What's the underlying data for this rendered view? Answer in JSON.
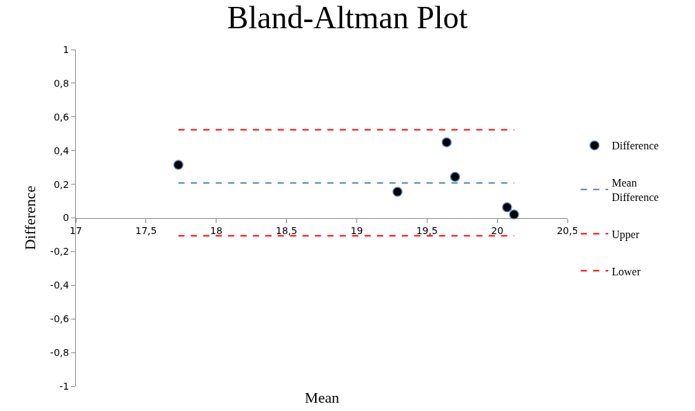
{
  "chart_data": {
    "type": "scatter",
    "title": "Bland-Altman Plot",
    "xlabel": "Mean",
    "ylabel": "Difference",
    "xlim": [
      17,
      20.5
    ],
    "xticks": [
      {
        "value": 17,
        "label": "17"
      },
      {
        "value": 17.5,
        "label": "17,5"
      },
      {
        "value": 18,
        "label": "18"
      },
      {
        "value": 18.5,
        "label": "18,5"
      },
      {
        "value": 19,
        "label": "19"
      },
      {
        "value": 19.5,
        "label": "19,5"
      },
      {
        "value": 20,
        "label": "20"
      },
      {
        "value": 20.5,
        "label": "20,5"
      }
    ],
    "ylim": [
      -1,
      1
    ],
    "yticks": [
      {
        "value": -1,
        "label": "-1"
      },
      {
        "value": -0.8,
        "label": "-0,8"
      },
      {
        "value": -0.6,
        "label": "-0,6"
      },
      {
        "value": -0.4,
        "label": "-0,4"
      },
      {
        "value": -0.2,
        "label": "-0,2"
      },
      {
        "value": 0,
        "label": "0"
      },
      {
        "value": 0.2,
        "label": "0,2"
      },
      {
        "value": 0.4,
        "label": "0,4"
      },
      {
        "value": 0.6,
        "label": "0,6"
      },
      {
        "value": 0.8,
        "label": "0,8"
      },
      {
        "value": 1,
        "label": "1"
      }
    ],
    "grid": false,
    "legend": "right",
    "series": [
      {
        "name": "Difference",
        "marker": "circle",
        "color": "#000000",
        "x": [
          17.73,
          19.29,
          19.64,
          19.7,
          20.07,
          20.12
        ],
        "values": [
          0.315,
          0.155,
          0.449,
          0.244,
          0.063,
          0.02
        ]
      },
      {
        "name": "Mean Difference",
        "type": "line",
        "marker": "none",
        "line_style": "dashed",
        "color": "#4f81bd",
        "x": [
          17.73,
          20.12
        ],
        "values": [
          0.208,
          0.208
        ]
      },
      {
        "name": "Upper",
        "type": "line",
        "marker": "none",
        "line_style": "dashed",
        "color": "#ff0000",
        "x": [
          17.73,
          20.12
        ],
        "values": [
          0.524,
          0.524
        ]
      },
      {
        "name": "Lower",
        "type": "line",
        "marker": "none",
        "line_style": "dashed",
        "color": "#ff0000",
        "x": [
          17.73,
          20.12
        ],
        "values": [
          -0.106,
          -0.106
        ]
      }
    ]
  }
}
